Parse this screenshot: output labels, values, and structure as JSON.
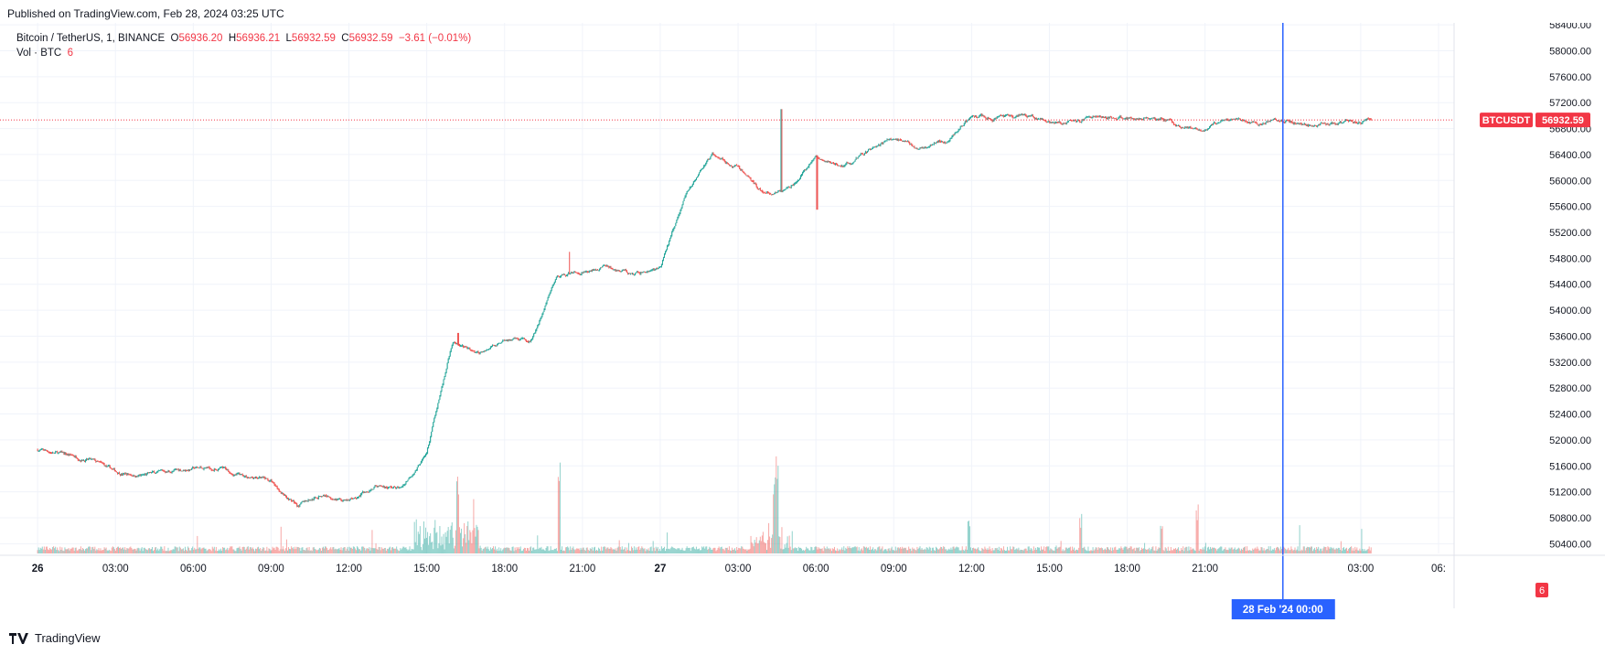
{
  "published": "Published on TradingView.com, Feb 28, 2024 03:25 UTC",
  "legend": {
    "pair": "Bitcoin / TetherUS, 1, BINANCE",
    "o_label": "O",
    "o": "56936.20",
    "h_label": "H",
    "h": "56936.21",
    "l_label": "L",
    "l": "56932.59",
    "c_label": "C",
    "c": "56932.59",
    "change": "−3.61 (−0.01%)",
    "vol_label": "Vol · BTC",
    "vol": "6"
  },
  "badges": {
    "symbol": "BTCUSDT",
    "price": "56932.59",
    "volume": "6",
    "crosshair_time": "28 Feb '24   00:00"
  },
  "footer": {
    "brand": "TradingView"
  },
  "colors": {
    "up": "#26a69a",
    "down": "#ef5350",
    "crosshair": "#2962ff",
    "grid": "#f0f3fa"
  },
  "chart_data": {
    "type": "candlestick",
    "symbol": "BTCUSDT",
    "title": "Bitcoin / TetherUS, 1, BINANCE",
    "yaxis_ticks": [
      "50400.00",
      "50800.00",
      "51200.00",
      "51600.00",
      "52000.00",
      "52400.00",
      "52800.00",
      "53200.00",
      "53600.00",
      "54000.00",
      "54400.00",
      "54800.00",
      "55200.00",
      "55600.00",
      "56000.00",
      "56400.00",
      "56800.00",
      "57200.00",
      "57600.00",
      "58000.00",
      "58400.00"
    ],
    "ylim": [
      50250,
      58430
    ],
    "xaxis_ticks": [
      "26",
      "03:00",
      "06:00",
      "09:00",
      "12:00",
      "15:00",
      "18:00",
      "21:00",
      "27",
      "03:00",
      "06:00",
      "09:00",
      "12:00",
      "15:00",
      "18:00",
      "21:00",
      "03:00",
      "06:"
    ],
    "xaxis_hours": [
      0,
      3,
      6,
      9,
      12,
      15,
      18,
      21,
      24,
      27,
      30,
      33,
      36,
      39,
      42,
      45,
      51,
      54
    ],
    "xlim_hours": [
      -1.45,
      54.6
    ],
    "last_price": 56932.59,
    "crosshair_hour": 48,
    "price_path": [
      [
        0,
        51850
      ],
      [
        1,
        51780
      ],
      [
        2,
        51700
      ],
      [
        3,
        51500
      ],
      [
        4,
        51450
      ],
      [
        5,
        51510
      ],
      [
        6,
        51560
      ],
      [
        7,
        51570
      ],
      [
        8,
        51450
      ],
      [
        9,
        51350
      ],
      [
        10,
        51000
      ],
      [
        11,
        51160
      ],
      [
        12,
        51050
      ],
      [
        13,
        51300
      ],
      [
        14,
        51250
      ],
      [
        15,
        51800
      ],
      [
        16,
        53550
      ],
      [
        17,
        53300
      ],
      [
        18,
        53550
      ],
      [
        19,
        53500
      ],
      [
        20,
        54500
      ],
      [
        21,
        54600
      ],
      [
        22,
        54700
      ],
      [
        23,
        54550
      ],
      [
        24,
        54650
      ],
      [
        25,
        55800
      ],
      [
        26,
        56400
      ],
      [
        27,
        56200
      ],
      [
        28,
        55800
      ],
      [
        29,
        55900
      ],
      [
        30,
        56350
      ],
      [
        31,
        56200
      ],
      [
        32,
        56450
      ],
      [
        33,
        56650
      ],
      [
        34,
        56500
      ],
      [
        35,
        56600
      ],
      [
        36,
        57000
      ],
      [
        37,
        56950
      ],
      [
        38,
        57000
      ],
      [
        39,
        56900
      ],
      [
        40,
        56900
      ],
      [
        41,
        57000
      ],
      [
        42,
        56950
      ],
      [
        43,
        57000
      ],
      [
        44,
        56850
      ],
      [
        45,
        56800
      ],
      [
        46,
        56950
      ],
      [
        47,
        56850
      ],
      [
        48,
        56950
      ],
      [
        49,
        56850
      ],
      [
        50,
        56900
      ],
      [
        51.4,
        56932
      ]
    ],
    "spikes": [
      [
        28.66,
        57100
      ],
      [
        16.2,
        53650
      ],
      [
        20.5,
        54900
      ],
      [
        30.05,
        55550
      ]
    ],
    "volume_spikes": [
      [
        16.2,
        110
      ],
      [
        20.1,
        115
      ],
      [
        28.4,
        95
      ],
      [
        28.5,
        130
      ],
      [
        35.9,
        55
      ],
      [
        40.2,
        50
      ],
      [
        43.3,
        45
      ],
      [
        44.7,
        65
      ]
    ],
    "volume_axis_max": 160
  }
}
